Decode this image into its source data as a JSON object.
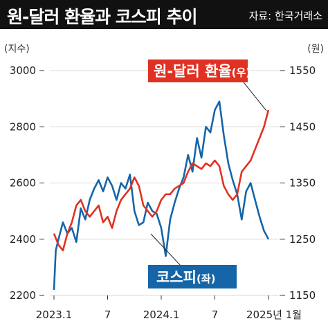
{
  "header": {
    "title": "원-달러 환율과 코스피 추이",
    "source": "자료: 한국거래소"
  },
  "chart_data": {
    "type": "line",
    "x_ticks": [
      "2023.1",
      "7",
      "2024.1",
      "7",
      "2025년 1월"
    ],
    "x_ticks_months": [
      0,
      6,
      12,
      18,
      24
    ],
    "y_left": {
      "unit": "(지수)",
      "ylim": [
        2200,
        3000
      ],
      "ticks": [
        2200,
        2400,
        2600,
        2800,
        3000
      ]
    },
    "y_right": {
      "unit": "(원)",
      "ylim": [
        1150,
        1550
      ],
      "ticks": [
        1150,
        1250,
        1350,
        1450,
        1550
      ]
    },
    "series": [
      {
        "name": "코스피",
        "name_suffix": "(좌)",
        "axis": "left",
        "color": "#1565a8",
        "x": [
          0,
          0.2,
          0.5,
          1,
          1.5,
          2,
          2.5,
          3,
          3.5,
          4,
          4.5,
          5,
          5.5,
          6,
          6.5,
          7,
          7.5,
          8,
          8.5,
          9,
          9.5,
          10,
          10.5,
          11,
          11.5,
          12,
          12.5,
          13,
          13.5,
          14,
          14.5,
          15,
          15.5,
          16,
          16.5,
          17,
          17.5,
          18,
          18.5,
          19,
          19.5,
          20,
          20.5,
          21,
          21.5,
          22,
          22.5,
          23,
          23.5,
          24
        ],
        "values": [
          2220,
          2360,
          2400,
          2460,
          2420,
          2440,
          2390,
          2510,
          2470,
          2540,
          2580,
          2610,
          2570,
          2620,
          2590,
          2540,
          2600,
          2580,
          2630,
          2500,
          2450,
          2460,
          2530,
          2500,
          2490,
          2440,
          2340,
          2470,
          2530,
          2580,
          2620,
          2700,
          2640,
          2760,
          2690,
          2800,
          2780,
          2860,
          2890,
          2770,
          2670,
          2610,
          2560,
          2470,
          2570,
          2600,
          2540,
          2480,
          2430,
          2400
        ]
      },
      {
        "name": "원-달러 환율",
        "name_suffix": "(우)",
        "axis": "right",
        "color": "#e03123",
        "x": [
          0,
          0.5,
          1,
          1.5,
          2,
          2.5,
          3,
          3.5,
          4,
          4.5,
          5,
          5.5,
          6,
          6.5,
          7,
          7.5,
          8,
          8.5,
          9,
          9.5,
          10,
          10.5,
          11,
          11.5,
          12,
          12.5,
          13,
          13.5,
          14,
          14.5,
          15,
          15.5,
          16,
          16.5,
          17,
          17.5,
          18,
          18.5,
          19,
          19.5,
          20,
          20.5,
          21,
          21.5,
          22,
          22.5,
          23,
          23.5,
          24
        ],
        "values": [
          1260,
          1240,
          1230,
          1260,
          1280,
          1310,
          1320,
          1300,
          1290,
          1300,
          1310,
          1280,
          1290,
          1270,
          1300,
          1320,
          1330,
          1340,
          1360,
          1345,
          1310,
          1300,
          1290,
          1300,
          1320,
          1330,
          1330,
          1340,
          1345,
          1350,
          1370,
          1385,
          1380,
          1375,
          1385,
          1380,
          1390,
          1380,
          1345,
          1330,
          1320,
          1330,
          1370,
          1380,
          1390,
          1410,
          1430,
          1450,
          1480
        ]
      }
    ]
  }
}
